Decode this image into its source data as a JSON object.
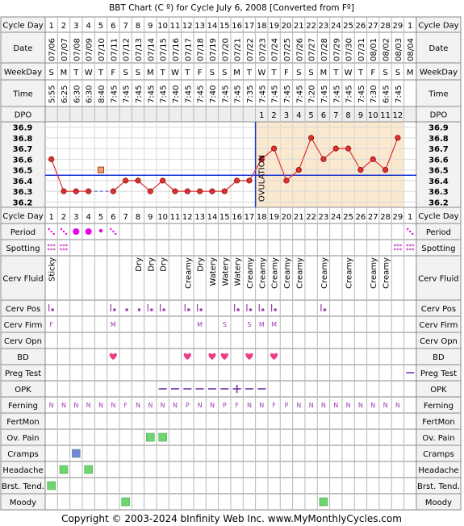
{
  "title": "BBT Chart (C º) for Cycle July 6, 2008  [Converted from Fº]",
  "footer": "Copyright © 2003-2024 bInfinity Web Inc.    www.MyMonthlyCycles.com",
  "row_labels": {
    "cycle_day": "Cycle Day",
    "date": "Date",
    "weekday": "WeekDay",
    "time": "Time",
    "dpo": "DPO",
    "period": "Period",
    "spotting": "Spotting",
    "cerv_fluid": "Cerv Fluid",
    "cerv_pos": "Cerv Pos",
    "cerv_firm": "Cerv Firm",
    "cerv_opn": "Cerv Opn",
    "bd": "BD",
    "preg_test": "Preg Test",
    "opk": "OPK",
    "ferning": "Ferning",
    "fertmon": "FertMon",
    "ov_pain": "Ov. Pain",
    "cramps": "Cramps",
    "headache": "Headache",
    "brst_tend": "Brst. Tend.",
    "moody": "Moody"
  },
  "ovulation_label": "OVULATION",
  "colors": {
    "border": "#8a8a8a",
    "grid": "#b8b8b8",
    "label_bg": "#f2f2f2",
    "post_ovulation_bg": "#fbe9cf",
    "temp_line": "#e03030",
    "temp_dot": "#e03030",
    "coverline": "#1a33d6",
    "ovulation_line": "#1a33d6",
    "heart": "#ee3d84",
    "period": "#ee00ee",
    "spotting": "#d46ad4",
    "symptom_green": "#6ed66e",
    "symptom_blue": "#6f88d8",
    "purple_text": "#9a3eb0",
    "opk_line": "#7030a0"
  },
  "chart_data": {
    "type": "line",
    "title": "BBT Chart (C º) for Cycle July 6, 2008  [Converted from Fº]",
    "cycle_days": [
      1,
      2,
      3,
      4,
      5,
      6,
      7,
      8,
      9,
      10,
      11,
      12,
      13,
      14,
      15,
      16,
      17,
      18,
      19,
      20,
      21,
      22,
      23,
      24,
      25,
      26,
      27,
      28,
      29,
      1
    ],
    "dates": [
      "07/06",
      "07/07",
      "07/08",
      "07/09",
      "07/10",
      "07/11",
      "07/12",
      "07/13",
      "07/14",
      "07/15",
      "07/16",
      "07/17",
      "07/18",
      "07/19",
      "07/20",
      "07/21",
      "07/22",
      "07/23",
      "07/24",
      "07/25",
      "07/26",
      "07/27",
      "07/28",
      "07/29",
      "07/30",
      "07/31",
      "08/01",
      "08/02",
      "08/03",
      "08/04"
    ],
    "weekdays": [
      "S",
      "M",
      "T",
      "W",
      "T",
      "F",
      "S",
      "S",
      "M",
      "T",
      "W",
      "T",
      "F",
      "S",
      "S",
      "M",
      "T",
      "W",
      "T",
      "F",
      "S",
      "S",
      "M",
      "T",
      "W",
      "T",
      "F",
      "S",
      "S",
      "M"
    ],
    "times": [
      "5:55",
      "6:25",
      "6:30",
      "6:30",
      "8:40",
      "7:45",
      "7:45",
      "7:45",
      "7:45",
      "7:45",
      "7:40",
      "7:45",
      "7:45",
      "7:40",
      "7:45",
      "7:45",
      "7:35",
      "7:45",
      "7:45",
      "7:45",
      "7:45",
      "7:20",
      "7:45",
      "7:45",
      "7:45",
      "7:45",
      "7:30",
      "6:45",
      "7:45",
      ""
    ],
    "dpo": [
      "",
      "",
      "",
      "",
      "",
      "",
      "",
      "",
      "",
      "",
      "",
      "",
      "",
      "",
      "",
      "",
      "",
      "1",
      "2",
      "3",
      "4",
      "5",
      "6",
      "7",
      "8",
      "9",
      "10",
      "11",
      "12",
      ""
    ],
    "temperatures": [
      36.6,
      36.3,
      36.3,
      36.3,
      null,
      36.3,
      36.4,
      36.4,
      36.3,
      36.4,
      36.3,
      36.3,
      36.3,
      36.3,
      36.3,
      36.4,
      36.4,
      36.6,
      36.7,
      36.4,
      36.5,
      36.8,
      36.6,
      36.7,
      36.7,
      36.5,
      36.6,
      36.5,
      36.8,
      null
    ],
    "discarded": [
      {
        "day_index": 4,
        "value": 36.5
      }
    ],
    "y_ticks": [
      36.9,
      36.8,
      36.7,
      36.6,
      36.5,
      36.4,
      36.3,
      36.2
    ],
    "ylim": [
      36.15,
      36.95
    ],
    "coverline": 36.45,
    "ovulation_day_index": 16,
    "cerv_fluid": [
      "Sticky",
      "",
      "",
      "",
      "",
      "",
      "",
      "Dry",
      "Dry",
      "Dry",
      "",
      "Creamy",
      "Dry",
      "Watery",
      "Watery",
      "Watery",
      "Creamy",
      "Creamy",
      "Creamy",
      "Creamy",
      "Creamy",
      "",
      "Creamy",
      "",
      "Creamy",
      "",
      "Creamy",
      "Creamy",
      "",
      ""
    ],
    "period": [
      "dots",
      "dots",
      "large",
      "large",
      "small",
      "dots",
      "",
      "",
      "",
      "",
      "",
      "",
      "",
      "",
      "",
      "",
      "",
      "",
      "",
      "",
      "",
      "",
      "",
      "",
      "",
      "",
      "",
      "",
      "",
      "dots"
    ],
    "spotting": [
      "grid",
      "grid",
      "",
      "",
      "",
      "",
      "",
      "",
      "",
      "",
      "",
      "",
      "",
      "",
      "",
      "",
      "",
      "",
      "",
      "",
      "",
      "",
      "",
      "",
      "",
      "",
      "",
      "",
      "grid",
      "grid"
    ],
    "cerv_pos": [
      "|.",
      "",
      "",
      "",
      "",
      "|.",
      ".",
      ".",
      "|.",
      "|.",
      "",
      "|.",
      "|.",
      "",
      "",
      "|.",
      "|.",
      "|.",
      "|.",
      "",
      "",
      "",
      "|.",
      "",
      "",
      "",
      "",
      "",
      "",
      ""
    ],
    "cerv_firm": [
      "F",
      "",
      "",
      "",
      "",
      "M",
      "",
      "",
      "",
      "",
      "",
      "",
      "M",
      "",
      "S",
      "",
      "S",
      "M",
      "M",
      "",
      "",
      "",
      "",
      "",
      "",
      "",
      "",
      "",
      "",
      ""
    ],
    "bd": [
      false,
      false,
      false,
      false,
      false,
      true,
      false,
      false,
      false,
      false,
      false,
      true,
      false,
      true,
      true,
      false,
      true,
      false,
      true,
      false,
      false,
      false,
      false,
      false,
      false,
      false,
      false,
      false,
      false,
      false
    ],
    "preg_test": [
      "",
      "",
      "",
      "",
      "",
      "",
      "",
      "",
      "",
      "",
      "",
      "",
      "",
      "",
      "",
      "",
      "",
      "",
      "",
      "",
      "",
      "",
      "",
      "",
      "",
      "",
      "",
      "",
      "",
      "-"
    ],
    "opk": [
      "",
      "",
      "",
      "",
      "",
      "",
      "",
      "",
      "",
      "-",
      "-",
      "-",
      "-",
      "-",
      "-",
      "+",
      "-",
      "-",
      "",
      "",
      "",
      "",
      "",
      "",
      "",
      "",
      "",
      "",
      "",
      ""
    ],
    "ferning": [
      "N",
      "N",
      "N",
      "N",
      "N",
      "N",
      "F",
      "N",
      "N",
      "N",
      "N",
      "P",
      "N",
      "N",
      "P",
      "F",
      "N",
      "N",
      "F",
      "P",
      "N",
      "N",
      "N",
      "N",
      "N",
      "N",
      "N",
      "N",
      "N",
      ""
    ],
    "ov_pain": [
      false,
      false,
      false,
      false,
      false,
      false,
      false,
      false,
      true,
      true,
      false,
      false,
      false,
      false,
      false,
      false,
      false,
      false,
      false,
      false,
      false,
      false,
      false,
      false,
      false,
      false,
      false,
      false,
      false,
      false
    ],
    "cramps": [
      false,
      false,
      true,
      false,
      false,
      false,
      false,
      false,
      false,
      false,
      false,
      false,
      false,
      false,
      false,
      false,
      false,
      false,
      false,
      false,
      false,
      false,
      false,
      false,
      false,
      false,
      false,
      false,
      false,
      false
    ],
    "headache": [
      false,
      true,
      false,
      true,
      false,
      false,
      false,
      false,
      false,
      false,
      false,
      false,
      false,
      false,
      false,
      false,
      false,
      false,
      false,
      false,
      false,
      false,
      false,
      false,
      false,
      false,
      false,
      false,
      false,
      false
    ],
    "brst_tend": [
      true,
      false,
      false,
      false,
      false,
      false,
      false,
      false,
      false,
      false,
      false,
      false,
      false,
      false,
      false,
      false,
      false,
      false,
      false,
      false,
      false,
      false,
      false,
      false,
      false,
      false,
      false,
      false,
      false,
      false
    ],
    "moody": [
      false,
      false,
      false,
      false,
      false,
      false,
      true,
      false,
      false,
      false,
      false,
      false,
      false,
      false,
      false,
      false,
      false,
      false,
      false,
      false,
      false,
      false,
      true,
      false,
      false,
      false,
      false,
      false,
      false,
      false
    ]
  }
}
